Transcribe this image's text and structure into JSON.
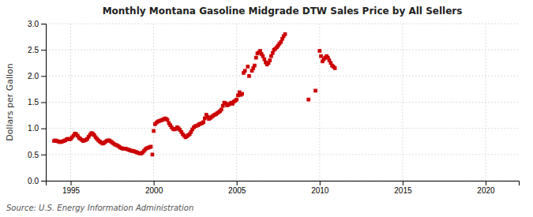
{
  "chart_data": {
    "type": "scatter",
    "title": "Monthly Montana Gasoline Midgrade DTW Sales Price by All Sellers",
    "ylabel": "Dollars per Gallon",
    "annotations": [
      "Source: U.S. Energy Information Administration"
    ],
    "color": "#cc0000",
    "marker": "square",
    "grid": true,
    "xlim": [
      1993.5,
      2022.0
    ],
    "ylim": [
      0.0,
      3.0
    ],
    "xticks": [
      1995,
      2000,
      2005,
      2010,
      2015,
      2020
    ],
    "yticks": [
      {
        "value": 0.0,
        "label": "0.0"
      },
      0.5,
      {
        "value": 1.0,
        "label": "1.0"
      },
      1.5,
      {
        "value": 2.0,
        "label": "2.0"
      },
      2.5,
      {
        "value": 3.0,
        "label": "3.0"
      }
    ],
    "x": [
      1994.0,
      1994.08,
      1994.17,
      1994.25,
      1994.33,
      1994.42,
      1994.5,
      1994.58,
      1994.67,
      1994.75,
      1994.83,
      1994.92,
      1995.0,
      1995.08,
      1995.17,
      1995.25,
      1995.33,
      1995.42,
      1995.5,
      1995.58,
      1995.67,
      1995.75,
      1995.83,
      1995.92,
      1996.0,
      1996.08,
      1996.17,
      1996.25,
      1996.33,
      1996.42,
      1996.5,
      1996.58,
      1996.67,
      1996.75,
      1996.83,
      1996.92,
      1997.0,
      1997.08,
      1997.17,
      1997.25,
      1997.33,
      1997.42,
      1997.5,
      1997.58,
      1997.67,
      1997.75,
      1997.83,
      1997.92,
      1998.0,
      1998.08,
      1998.17,
      1998.25,
      1998.33,
      1998.42,
      1998.5,
      1998.58,
      1998.67,
      1998.75,
      1998.83,
      1998.92,
      1999.0,
      1999.08,
      1999.17,
      1999.25,
      1999.33,
      1999.42,
      1999.5,
      1999.58,
      1999.67,
      1999.75,
      1999.83,
      1999.92,
      2000.0,
      2000.08,
      2000.17,
      2000.25,
      2000.33,
      2000.42,
      2000.5,
      2000.58,
      2000.67,
      2000.75,
      2000.83,
      2000.92,
      2001.0,
      2001.08,
      2001.17,
      2001.25,
      2001.33,
      2001.42,
      2001.5,
      2001.58,
      2001.67,
      2001.75,
      2001.83,
      2001.92,
      2002.0,
      2002.08,
      2002.17,
      2002.25,
      2002.33,
      2002.42,
      2002.5,
      2002.58,
      2002.67,
      2002.75,
      2002.83,
      2002.92,
      2003.0,
      2003.08,
      2003.17,
      2003.25,
      2003.33,
      2003.42,
      2003.5,
      2003.58,
      2003.67,
      2003.75,
      2003.83,
      2003.92,
      2004.0,
      2004.08,
      2004.17,
      2004.25,
      2004.33,
      2004.42,
      2004.5,
      2004.58,
      2004.67,
      2004.75,
      2004.83,
      2004.92,
      2005.0,
      2005.08,
      2005.17,
      2005.25,
      2005.33,
      2005.42,
      2005.5,
      2005.67,
      2005.75,
      2005.92,
      2006.0,
      2006.08,
      2006.17,
      2006.25,
      2006.33,
      2006.42,
      2006.5,
      2006.58,
      2006.67,
      2006.75,
      2006.83,
      2006.92,
      2007.0,
      2007.08,
      2007.17,
      2007.25,
      2007.33,
      2007.42,
      2007.5,
      2007.58,
      2007.67,
      2007.75,
      2007.83,
      2007.92,
      2009.33,
      2009.75,
      2010.0,
      2010.08,
      2010.17,
      2010.25,
      2010.33,
      2010.42,
      2010.5,
      2010.58,
      2010.67,
      2010.75,
      2010.83,
      2010.92
    ],
    "values": [
      0.76,
      0.77,
      0.76,
      0.75,
      0.74,
      0.74,
      0.75,
      0.76,
      0.77,
      0.79,
      0.8,
      0.79,
      0.8,
      0.83,
      0.86,
      0.9,
      0.89,
      0.86,
      0.82,
      0.8,
      0.78,
      0.76,
      0.77,
      0.78,
      0.8,
      0.84,
      0.88,
      0.91,
      0.9,
      0.87,
      0.83,
      0.8,
      0.77,
      0.75,
      0.73,
      0.71,
      0.72,
      0.74,
      0.76,
      0.77,
      0.77,
      0.75,
      0.73,
      0.71,
      0.69,
      0.68,
      0.67,
      0.65,
      0.63,
      0.62,
      0.61,
      0.61,
      0.61,
      0.6,
      0.59,
      0.58,
      0.57,
      0.57,
      0.56,
      0.55,
      0.54,
      0.53,
      0.52,
      0.52,
      0.54,
      0.57,
      0.6,
      0.62,
      0.63,
      0.64,
      0.65,
      0.5,
      0.95,
      1.08,
      1.11,
      1.13,
      1.14,
      1.15,
      1.16,
      1.17,
      1.19,
      1.18,
      1.16,
      1.1,
      1.06,
      1.02,
      0.99,
      0.98,
      0.99,
      1.02,
      1.0,
      0.97,
      0.93,
      0.89,
      0.86,
      0.83,
      0.85,
      0.87,
      0.89,
      0.93,
      0.98,
      1.02,
      1.04,
      1.05,
      1.06,
      1.08,
      1.09,
      1.1,
      1.12,
      1.19,
      1.26,
      1.22,
      1.18,
      1.2,
      1.22,
      1.24,
      1.26,
      1.27,
      1.29,
      1.31,
      1.33,
      1.36,
      1.43,
      1.49,
      1.48,
      1.44,
      1.45,
      1.47,
      1.49,
      1.47,
      1.51,
      1.53,
      1.55,
      1.63,
      1.69,
      1.64,
      1.66,
      2.06,
      2.1,
      2.18,
      2.0,
      2.1,
      2.15,
      2.2,
      2.35,
      2.43,
      2.45,
      2.48,
      2.42,
      2.38,
      2.32,
      2.26,
      2.22,
      2.25,
      2.3,
      2.38,
      2.44,
      2.5,
      2.52,
      2.55,
      2.58,
      2.62,
      2.65,
      2.71,
      2.76,
      2.8,
      1.55,
      1.72,
      2.48,
      2.38,
      2.28,
      2.32,
      2.35,
      2.38,
      2.35,
      2.3,
      2.25,
      2.2,
      2.18,
      2.15
    ]
  }
}
